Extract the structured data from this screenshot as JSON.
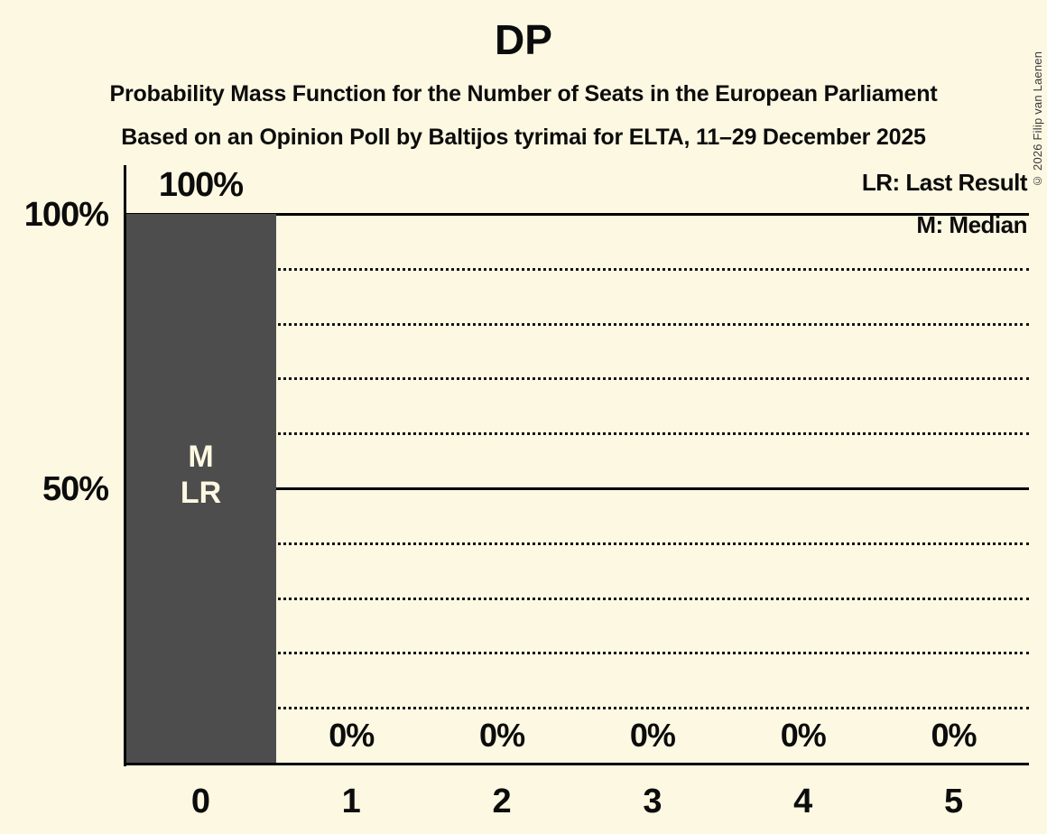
{
  "header": {
    "title": "DP",
    "subtitle1": "Probability Mass Function for the Number of Seats in the European Parliament",
    "subtitle2": "Based on an Opinion Poll by Baltijos tyrimai for ELTA, 11–29 December 2025"
  },
  "legend": {
    "lr_label": "LR: Last Result",
    "m_label": "M: Median"
  },
  "copyright": "© 2026 Filip van Laenen",
  "chart_data": {
    "type": "bar",
    "title": "DP",
    "categories": [
      "0",
      "1",
      "2",
      "3",
      "4",
      "5"
    ],
    "values": [
      100,
      0,
      0,
      0,
      0,
      0
    ],
    "value_labels": [
      "100%",
      "0%",
      "0%",
      "0%",
      "0%",
      "0%"
    ],
    "bar_annotations": {
      "median": "M",
      "last_result": "LR"
    },
    "median_seats": 0,
    "last_result_seats": 0,
    "ylim": [
      0,
      100
    ],
    "yticks": [
      100,
      50
    ],
    "ytick_labels": [
      "100%",
      "50%"
    ],
    "solid_gridlines_pct": [
      100,
      50
    ],
    "dotted_gridlines_pct": [
      90,
      80,
      70,
      60,
      40,
      30,
      20,
      10
    ],
    "grid": true,
    "legend_position": "top-right",
    "colors": {
      "bar": "#4d4d4d",
      "background": "#fcf8e2",
      "text": "#0c0c0c",
      "bar_label_text": "#fcf8e2"
    }
  }
}
